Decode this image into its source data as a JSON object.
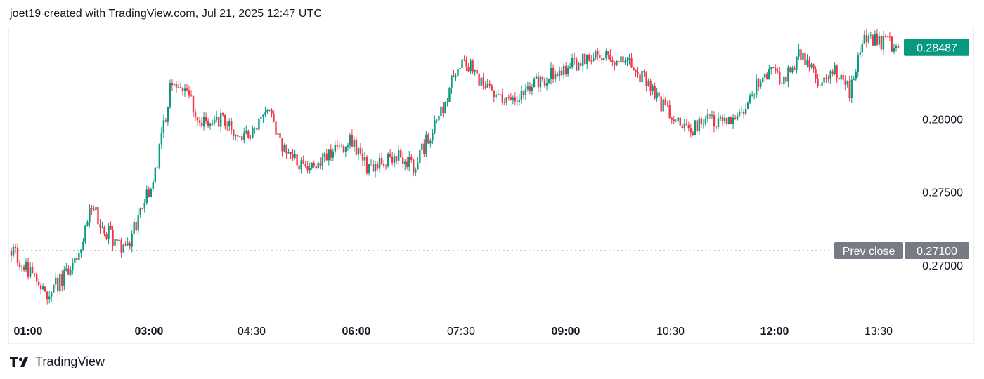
{
  "header": {
    "text": "joet19 created with TradingView.com, Jul 21, 2025 12:47 UTC"
  },
  "footer": {
    "brand": "TradingView",
    "logo_icon": "tradingview-logo-icon"
  },
  "colors": {
    "up": "#089981",
    "down": "#f23645",
    "last_price_badge": "#089981",
    "prev_close_badge": "#787b86"
  },
  "chart_data": {
    "type": "candlestick",
    "series": [
      {
        "name": "",
        "x": [
          "00:45",
          "01:00",
          "01:15",
          "01:30",
          "01:45",
          "02:00",
          "02:15",
          "02:30",
          "02:45",
          "03:00",
          "03:10",
          "03:20",
          "03:30",
          "03:45",
          "04:00",
          "04:15",
          "04:30",
          "04:45",
          "05:00",
          "05:15",
          "05:30",
          "05:45",
          "06:00",
          "06:15",
          "06:30",
          "06:45",
          "07:00",
          "07:10",
          "07:20",
          "07:30",
          "07:45",
          "08:00",
          "08:15",
          "08:30",
          "08:45",
          "09:00",
          "09:15",
          "09:30",
          "09:45",
          "10:00",
          "10:15",
          "10:30",
          "10:45",
          "11:00",
          "11:15",
          "11:30",
          "11:45",
          "12:00",
          "12:15",
          "12:30",
          "12:45",
          "13:00",
          "13:15",
          "13:25",
          "13:35",
          "13:45"
        ],
        "values": [
          0.271,
          0.2697,
          0.268,
          0.2688,
          0.2702,
          0.274,
          0.2722,
          0.2708,
          0.2735,
          0.2765,
          0.283,
          0.2815,
          0.2795,
          0.28,
          0.2788,
          0.279,
          0.2808,
          0.2775,
          0.277,
          0.2768,
          0.278,
          0.2785,
          0.2768,
          0.277,
          0.2775,
          0.2768,
          0.279,
          0.2815,
          0.2845,
          0.2825,
          0.282,
          0.2812,
          0.2823,
          0.2825,
          0.2835,
          0.2838,
          0.2843,
          0.2842,
          0.284,
          0.283,
          0.2815,
          0.28,
          0.279,
          0.2803,
          0.2797,
          0.28,
          0.282,
          0.2832,
          0.2828,
          0.2845,
          0.2825,
          0.2835,
          0.2818,
          0.2858,
          0.2852,
          0.2849
        ]
      }
    ],
    "title": "",
    "y_ticks": [
      "0.28000",
      "0.27500",
      "0.27000"
    ],
    "x_ticks": [
      {
        "label": "01:00",
        "bold": true
      },
      {
        "label": "03:00",
        "bold": true
      },
      {
        "label": "04:30",
        "bold": false
      },
      {
        "label": "06:00",
        "bold": true
      },
      {
        "label": "07:30",
        "bold": false
      },
      {
        "label": "09:00",
        "bold": true
      },
      {
        "label": "10:30",
        "bold": false
      },
      {
        "label": "12:00",
        "bold": true
      },
      {
        "label": "13:30",
        "bold": false
      }
    ],
    "last_price": "0.28487",
    "prev_close_label": "Prev close",
    "prev_close_value": "0.27100",
    "ylim": [
      0.2663,
      0.2862
    ]
  }
}
